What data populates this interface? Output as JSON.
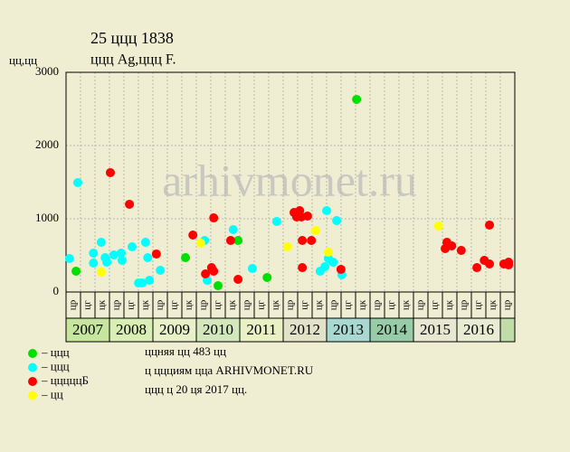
{
  "chart_data": {
    "type": "scatter",
    "title": "25 ццц 1838",
    "subtitle": "ццц Ag,ццц F.",
    "y_label": "цц,цц",
    "watermark": "arhivmonet.ru",
    "xlim": [
      2007,
      2017.333
    ],
    "ylim": [
      0,
      3000
    ],
    "yticks": [
      0,
      1000,
      2000,
      3000
    ],
    "grid": true,
    "periods": [
      "цр",
      "цг",
      "цк",
      "цр",
      "цг",
      "цк",
      "цр",
      "цг",
      "цк",
      "цр",
      "цг",
      "цк",
      "цр",
      "цг",
      "цк",
      "цр",
      "цг",
      "цк",
      "цр",
      "цг",
      "цк",
      "цр",
      "цг",
      "цк",
      "цр",
      "цг",
      "цк",
      "цр",
      "цг",
      "цк",
      "цр"
    ],
    "years": [
      "2007",
      "2008",
      "2009",
      "2010",
      "2011",
      "2012",
      "2013",
      "2014",
      "2015",
      "2016"
    ],
    "year_colors": [
      "#c6e6a0",
      "#d8eeb4",
      "#e8f0c8",
      "#d2e8bc",
      "#e8f0c4",
      "#e2e2c8",
      "#a8d8d0",
      "#98cca8",
      "#e8e8d2",
      "#e8ecd2"
    ],
    "series": [
      {
        "name": "– ццц",
        "color": "#00e000",
        "x": [
          2007.23,
          2009.75,
          2010.5,
          2010.96,
          2011.63,
          2013.69
        ],
        "values": [
          284,
          469,
          86,
          704,
          198,
          2630
        ]
      },
      {
        "name": "– ццц",
        "color": "#00ffff",
        "x": [
          2007.08,
          2007.27,
          2007.63,
          2007.63,
          2007.81,
          2007.9,
          2007.94,
          2008.1,
          2008.27,
          2008.29,
          2008.52,
          2008.67,
          2008.75,
          2008.83,
          2008.88,
          2008.92,
          2009.17,
          2010.19,
          2010.25,
          2010.85,
          2011.29,
          2011.85,
          2012.85,
          2012.96,
          2013.0,
          2013.04,
          2013.15,
          2013.23,
          2013.35
        ],
        "values": [
          457,
          1494,
          531,
          395,
          679,
          469,
          407,
          506,
          531,
          432,
          617,
          123,
          123,
          679,
          469,
          160,
          296,
          704,
          160,
          852,
          321,
          963,
          284,
          346,
          1111,
          457,
          407,
          975,
          235
        ]
      },
      {
        "name": "– цццццБ",
        "color": "#ff0000",
        "x": [
          2008.02,
          2008.46,
          2009.08,
          2009.92,
          2010.21,
          2010.35,
          2010.4,
          2010.4,
          2010.79,
          2010.96,
          2012.25,
          2012.31,
          2012.38,
          2012.42,
          2012.44,
          2012.44,
          2012.56,
          2012.65,
          2013.33,
          2015.73,
          2015.77,
          2015.88,
          2016.1,
          2016.46,
          2016.63,
          2016.75,
          2016.75,
          2017.08,
          2017.19,
          2017.19
        ],
        "values": [
          1630,
          1198,
          519,
          778,
          247,
          333,
          1012,
          284,
          704,
          173,
          1086,
          1025,
          1111,
          1025,
          704,
          333,
          1037,
          704,
          309,
          593,
          679,
          630,
          568,
          333,
          432,
          914,
          383,
          383,
          370,
          407
        ]
      },
      {
        "name": "– цц",
        "color": "#ffff00",
        "x": [
          2007.81,
          2010.1,
          2012.1,
          2012.75,
          2013.04,
          2015.58
        ],
        "values": [
          272,
          667,
          617,
          840,
          543,
          901
        ]
      }
    ],
    "notes": [
      "ццняя цц 483 цц",
      "ц ццциям цца ARHIVMONET.RU",
      "ццц ц 20 ця 2017 цц."
    ]
  }
}
